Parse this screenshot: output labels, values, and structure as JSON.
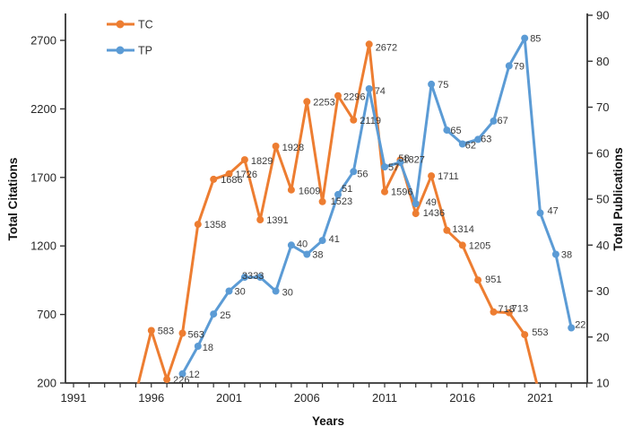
{
  "chart_data": {
    "type": "line",
    "title": "",
    "x_axis": {
      "label": "Years",
      "labeled_ticks": [
        1991,
        1996,
        2001,
        2006,
        2011,
        2016,
        2021
      ],
      "minor_ticks": "every year 1991-2024",
      "range": [
        1990.5,
        2024
      ]
    },
    "y_axis_left": {
      "label": "Total Citations",
      "ticks": [
        200,
        700,
        1200,
        1700,
        2200,
        2700
      ],
      "range": [
        200,
        2700
      ]
    },
    "y_axis_right": {
      "label": "Total Publications",
      "ticks": [
        10,
        20,
        30,
        40,
        50,
        60,
        70,
        80,
        90
      ],
      "range": [
        10,
        90
      ]
    },
    "grid": false,
    "legend": {
      "position": "top-left-inside",
      "items": [
        {
          "name": "TC",
          "color": "#ED7D31"
        },
        {
          "name": "TP",
          "color": "#5B9BD5"
        }
      ]
    },
    "styles": {
      "axis_color": "#333333",
      "data_label_color": "#3a3a3a",
      "background": "#ffffff",
      "tc_color": "#ED7D31",
      "tp_color": "#5B9BD5"
    },
    "series": [
      {
        "name": "TC",
        "axis": "left",
        "color": "#ED7D31",
        "points": [
          {
            "year": 1995,
            "value": null,
            "label": "",
            "clipped_below_axis": true,
            "draw_value": 120
          },
          {
            "year": 1996,
            "value": 583
          },
          {
            "year": 1997,
            "value": 226
          },
          {
            "year": 1998,
            "value": 563,
            "label_offset": [
              6,
              5
            ]
          },
          {
            "year": 1999,
            "value": 1358
          },
          {
            "year": 2000,
            "value": 1686,
            "label_offset": [
              8,
              4
            ]
          },
          {
            "year": 2001,
            "value": 1726
          },
          {
            "year": 2002,
            "value": 1829,
            "label_offset": [
              7,
              5
            ]
          },
          {
            "year": 2003,
            "value": 1391
          },
          {
            "year": 2004,
            "value": 1928,
            "label_offset": [
              7,
              5
            ]
          },
          {
            "year": 2005,
            "value": 1609,
            "label_offset": [
              8,
              5
            ]
          },
          {
            "year": 2006,
            "value": 2253
          },
          {
            "year": 2007,
            "value": 1523,
            "label_offset": [
              9,
              3
            ]
          },
          {
            "year": 2008,
            "value": 2296,
            "label_offset": [
              6,
              5
            ]
          },
          {
            "year": 2009,
            "value": 2119
          },
          {
            "year": 2010,
            "value": 2672,
            "label_offset": [
              7,
              7
            ]
          },
          {
            "year": 2011,
            "value": 1596
          },
          {
            "year": 2012,
            "value": 1827,
            "label_offset": [
              3,
              3
            ]
          },
          {
            "year": 2013,
            "value": 1436,
            "label_offset": [
              8,
              3
            ]
          },
          {
            "year": 2014,
            "value": 1711
          },
          {
            "year": 2015,
            "value": 1314,
            "label_offset": [
              6,
              2
            ]
          },
          {
            "year": 2016,
            "value": 1205
          },
          {
            "year": 2017,
            "value": 951,
            "label_offset": [
              8,
              3
            ]
          },
          {
            "year": 2018,
            "value": 718,
            "label_offset": [
              5,
              0
            ]
          },
          {
            "year": 2019,
            "value": 713,
            "label_offset": [
              3,
              -1
            ]
          },
          {
            "year": 2020,
            "value": 553,
            "label_offset": [
              8,
              1
            ]
          },
          {
            "year": 2021,
            "value": null,
            "label": "",
            "clipped_below_axis": true,
            "draw_value": 95
          }
        ]
      },
      {
        "name": "TP",
        "axis": "right",
        "color": "#5B9BD5",
        "points": [
          {
            "year": 1998,
            "value": 12
          },
          {
            "year": 1999,
            "value": 18,
            "label_offset": [
              5,
              5
            ]
          },
          {
            "year": 2000,
            "value": 25,
            "label_offset": [
              7,
              5
            ]
          },
          {
            "year": 2001,
            "value": 30,
            "label_offset": [
              6,
              4
            ]
          },
          {
            "year": 2002,
            "value": 33,
            "label_offset": [
              -3,
              2
            ]
          },
          {
            "year": 2003,
            "value": 33,
            "label_offset": [
              -8,
              2
            ]
          },
          {
            "year": 2004,
            "value": 30,
            "label_offset": [
              7,
              5
            ]
          },
          {
            "year": 2005,
            "value": 40,
            "label_offset": [
              6,
              2
            ]
          },
          {
            "year": 2006,
            "value": 38,
            "label_offset": [
              6,
              4
            ]
          },
          {
            "year": 2007,
            "value": 41,
            "label_offset": [
              7,
              2
            ]
          },
          {
            "year": 2008,
            "value": 51,
            "label_offset": [
              4,
              -3
            ]
          },
          {
            "year": 2009,
            "value": 56,
            "label_offset": [
              4,
              6
            ]
          },
          {
            "year": 2010,
            "value": 74,
            "label_offset": [
              6,
              6
            ]
          },
          {
            "year": 2011,
            "value": 57,
            "label_offset": [
              4,
              4
            ]
          },
          {
            "year": 2012,
            "value": 58,
            "label_offset": [
              -2,
              -1
            ]
          },
          {
            "year": 2013,
            "value": 49,
            "label_offset": [
              11,
              2
            ]
          },
          {
            "year": 2014,
            "value": 75
          },
          {
            "year": 2015,
            "value": 65,
            "label_offset": [
              4,
              4
            ]
          },
          {
            "year": 2016,
            "value": 62,
            "label_offset": [
              3,
              5
            ]
          },
          {
            "year": 2017,
            "value": 63,
            "label_offset": [
              3,
              3
            ]
          },
          {
            "year": 2018,
            "value": 67,
            "label_offset": [
              4,
              3
            ]
          },
          {
            "year": 2019,
            "value": 79,
            "label_offset": [
              5,
              4
            ]
          },
          {
            "year": 2020,
            "value": 85,
            "label_offset": [
              6,
              4
            ]
          },
          {
            "year": 2021,
            "value": 47,
            "label_offset": [
              8,
              1
            ]
          },
          {
            "year": 2022,
            "value": 38,
            "label_offset": [
              6,
              4
            ]
          },
          {
            "year": 2023,
            "value": 22,
            "label_offset": [
              4,
              0
            ]
          }
        ]
      }
    ]
  }
}
